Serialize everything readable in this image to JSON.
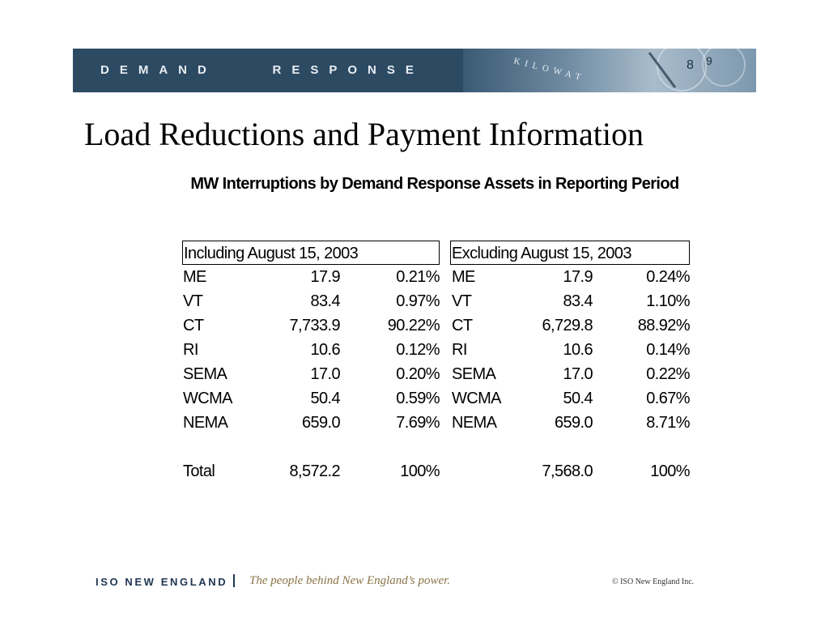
{
  "banner": {
    "label": "DEMAND    RESPONSE",
    "image_text": "KILOWAT"
  },
  "title": "Load Reductions and Payment Information",
  "table_title": "MW Interruptions by Demand Response Assets in Reporting Period",
  "including": {
    "header": "Including August 15, 2003",
    "rows": [
      {
        "region": "ME",
        "mw": "17.9",
        "pct": "0.21%"
      },
      {
        "region": "VT",
        "mw": "83.4",
        "pct": "0.97%"
      },
      {
        "region": "CT",
        "mw": "7,733.9",
        "pct": "90.22%"
      },
      {
        "region": "RI",
        "mw": "10.6",
        "pct": "0.12%"
      },
      {
        "region": "SEMA",
        "mw": "17.0",
        "pct": "0.20%"
      },
      {
        "region": "WCMA",
        "mw": "50.4",
        "pct": "0.59%"
      },
      {
        "region": "NEMA",
        "mw": "659.0",
        "pct": "7.69%"
      }
    ],
    "total": {
      "label": "Total",
      "mw": "8,572.2",
      "pct": "100%"
    }
  },
  "excluding": {
    "header": "Excluding August 15, 2003",
    "rows": [
      {
        "region": "ME",
        "mw": "17.9",
        "pct": "0.24%"
      },
      {
        "region": "VT",
        "mw": "83.4",
        "pct": "1.10%"
      },
      {
        "region": "CT",
        "mw": "6,729.8",
        "pct": "88.92%"
      },
      {
        "region": "RI",
        "mw": "10.6",
        "pct": "0.14%"
      },
      {
        "region": "SEMA",
        "mw": "17.0",
        "pct": "0.22%"
      },
      {
        "region": "WCMA",
        "mw": "50.4",
        "pct": "0.67%"
      },
      {
        "region": "NEMA",
        "mw": "659.0",
        "pct": "8.71%"
      }
    ],
    "total": {
      "mw": "7,568.0",
      "pct": "100%"
    }
  },
  "footer": {
    "org": "ISO NEW ENGLAND",
    "tagline": "The people behind New England’s power.",
    "copyright": "© ISO New England Inc."
  },
  "colors": {
    "banner": "#2d4a63",
    "footer_org": "#1f3650",
    "tagline": "#8a7446"
  }
}
